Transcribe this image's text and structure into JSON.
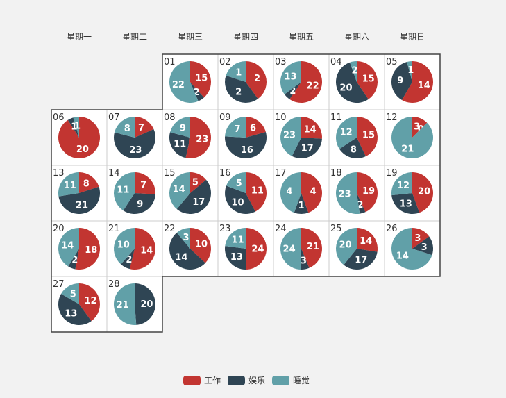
{
  "chart_data": {
    "type": "pie",
    "title": "",
    "legend_position": "bottom-center",
    "series": [
      {
        "name": "工作",
        "color": "#c23531"
      },
      {
        "name": "娱乐",
        "color": "#2f4554"
      },
      {
        "name": "睡觉",
        "color": "#61a0a8"
      }
    ],
    "weekdays": [
      "星期一",
      "星期二",
      "星期三",
      "星期四",
      "星期五",
      "星期六",
      "星期日"
    ],
    "days": [
      {
        "day": "01",
        "values": [
          15,
          2,
          22
        ]
      },
      {
        "day": "02",
        "values": [
          2,
          2,
          1
        ]
      },
      {
        "day": "03",
        "values": [
          22,
          2,
          13
        ]
      },
      {
        "day": "04",
        "values": [
          15,
          20,
          2
        ]
      },
      {
        "day": "05",
        "values": [
          14,
          9,
          1
        ]
      },
      {
        "day": "06",
        "values": [
          20,
          1,
          1
        ]
      },
      {
        "day": "07",
        "values": [
          7,
          23,
          8
        ]
      },
      {
        "day": "08",
        "values": [
          23,
          11,
          9
        ]
      },
      {
        "day": "09",
        "values": [
          6,
          16,
          7
        ]
      },
      {
        "day": "10",
        "values": [
          14,
          17,
          23
        ]
      },
      {
        "day": "11",
        "values": [
          15,
          8,
          12
        ]
      },
      {
        "day": "12",
        "values": [
          3,
          0,
          21
        ]
      },
      {
        "day": "13",
        "values": [
          8,
          21,
          11
        ]
      },
      {
        "day": "14",
        "values": [
          7,
          9,
          11
        ]
      },
      {
        "day": "15",
        "values": [
          5,
          17,
          14
        ]
      },
      {
        "day": "16",
        "values": [
          11,
          10,
          5
        ]
      },
      {
        "day": "17",
        "values": [
          4,
          1,
          4
        ]
      },
      {
        "day": "18",
        "values": [
          19,
          2,
          23
        ]
      },
      {
        "day": "19",
        "values": [
          20,
          13,
          12
        ]
      },
      {
        "day": "20",
        "values": [
          18,
          2,
          14
        ]
      },
      {
        "day": "21",
        "values": [
          14,
          2,
          10
        ]
      },
      {
        "day": "22",
        "values": [
          10,
          14,
          3
        ]
      },
      {
        "day": "23",
        "values": [
          24,
          13,
          11
        ]
      },
      {
        "day": "24",
        "values": [
          21,
          3,
          24
        ]
      },
      {
        "day": "25",
        "values": [
          14,
          17,
          20
        ]
      },
      {
        "day": "26",
        "values": [
          3,
          3,
          14
        ]
      },
      {
        "day": "27",
        "values": [
          12,
          13,
          5
        ]
      },
      {
        "day": "28",
        "values": [
          0,
          20,
          21
        ]
      }
    ]
  }
}
